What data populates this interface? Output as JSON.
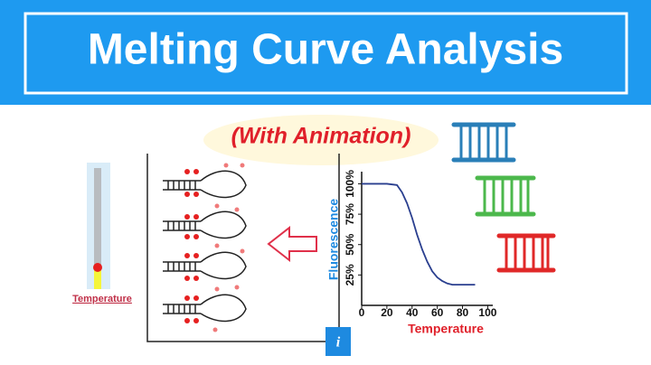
{
  "header": {
    "title": "Melting Curve Analysis",
    "subtitle": "(With Animation)"
  },
  "thermometer": {
    "label": "Temperature"
  },
  "chart_data": {
    "type": "line",
    "x_label": "Temperature",
    "y_label": "Fluorescence",
    "x": [
      0,
      10,
      20,
      28,
      32,
      36,
      40,
      44,
      48,
      52,
      56,
      60,
      64,
      68,
      72,
      80,
      90
    ],
    "series": [
      {
        "name": "Fluorescence",
        "color": "#2a3f8f",
        "values": [
          100,
          100,
          100,
          99,
          93,
          84,
          72,
          58,
          46,
          36,
          28,
          23,
          20,
          18,
          17,
          17,
          17
        ]
      }
    ],
    "xlim": [
      0,
      104
    ],
    "ylim": [
      0,
      110
    ],
    "xticks": [
      0,
      20,
      40,
      60,
      80,
      100
    ],
    "yticks": [
      {
        "value": 25,
        "label": "25%"
      },
      {
        "value": 50,
        "label": "50%"
      },
      {
        "value": 75,
        "label": "75%"
      },
      {
        "value": 100,
        "label": "100%"
      }
    ]
  }
}
